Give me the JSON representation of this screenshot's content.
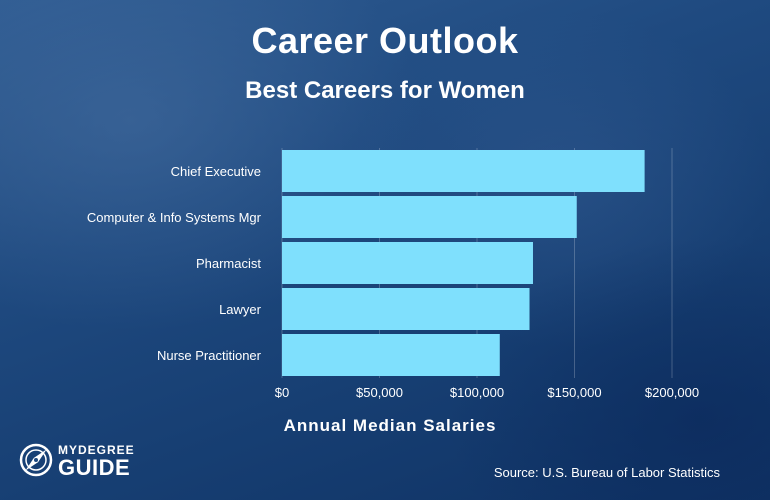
{
  "header": {
    "title": "Career Outlook",
    "subtitle": "Best Careers for Women"
  },
  "chart_data": {
    "type": "bar",
    "orientation": "horizontal",
    "categories": [
      "Chief Executive",
      "Computer & Info Systems Mgr",
      "Pharmacist",
      "Lawyer",
      "Nurse Practitioner"
    ],
    "values": [
      185950,
      151150,
      128710,
      126930,
      111680
    ],
    "xlabel": "Annual Median Salaries",
    "xlim": [
      0,
      200000
    ],
    "xticks": [
      0,
      50000,
      100000,
      150000,
      200000
    ],
    "xtick_labels": [
      "$0",
      "$50,000",
      "$100,000",
      "$150,000",
      "$200,000"
    ],
    "bar_color": "#7fe0fd",
    "grid": true
  },
  "branding": {
    "logo_top": "MYDEGREE",
    "logo_bottom": "GUIDE",
    "logo_icon": "compass-icon"
  },
  "footer": {
    "source": "Source: U.S. Bureau of Labor Statistics"
  }
}
